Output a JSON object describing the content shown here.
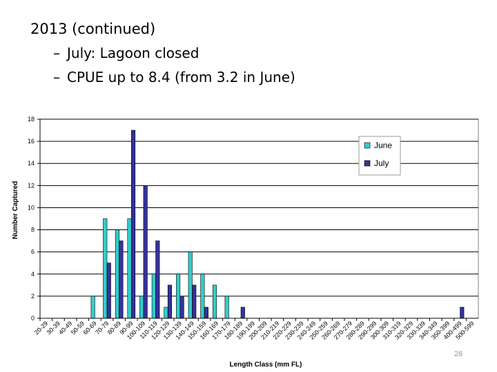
{
  "slide": {
    "heading": "2013 (continued)",
    "bullets": [
      {
        "dash": "–",
        "text": "July:  Lagoon closed"
      },
      {
        "dash": "–",
        "text": "CPUE up to 8.4 (from 3.2 in June)"
      }
    ],
    "page_number": "28"
  },
  "colors": {
    "june": "#33cccc",
    "july": "#333399",
    "grid": "#000000",
    "plot_bg": "#ffffff"
  },
  "chart_data": {
    "type": "bar",
    "xlabel": "Length Class (mm FL)",
    "ylabel": "Number Captured",
    "ylim": [
      0,
      18
    ],
    "yticks": [
      0,
      2,
      4,
      6,
      8,
      10,
      12,
      14,
      16,
      18
    ],
    "grid": true,
    "legend_position": "top-right",
    "categories": [
      "20-29",
      "30-39",
      "40-49",
      "50-59",
      "60-69",
      "70-79",
      "80-89",
      "90-99",
      "100-109",
      "110-119",
      "120-129",
      "130-139",
      "140-149",
      "150-159",
      "160-169",
      "170-179",
      "180-189",
      "190-199",
      "200-209",
      "210-219",
      "220-229",
      "230-239",
      "240-249",
      "250-259",
      "260-269",
      "270-279",
      "280-289",
      "290-299",
      "300-309",
      "310-319",
      "320-329",
      "330-339",
      "340-349",
      "350-399",
      "400-499",
      "500-599"
    ],
    "series": [
      {
        "name": "June",
        "color": "#33cccc",
        "values": [
          0,
          0,
          0,
          0,
          2,
          9,
          8,
          9,
          2,
          4,
          1,
          4,
          6,
          4,
          3,
          2,
          0,
          0,
          0,
          0,
          0,
          0,
          0,
          0,
          0,
          0,
          0,
          0,
          0,
          0,
          0,
          0,
          0,
          0,
          0,
          0
        ]
      },
      {
        "name": "July",
        "color": "#333399",
        "values": [
          0,
          0,
          0,
          0,
          0,
          5,
          7,
          17,
          12,
          7,
          3,
          2,
          3,
          1,
          0,
          0,
          1,
          0,
          0,
          0,
          0,
          0,
          0,
          0,
          0,
          0,
          0,
          0,
          0,
          0,
          0,
          0,
          0,
          0,
          1,
          0
        ]
      }
    ]
  }
}
